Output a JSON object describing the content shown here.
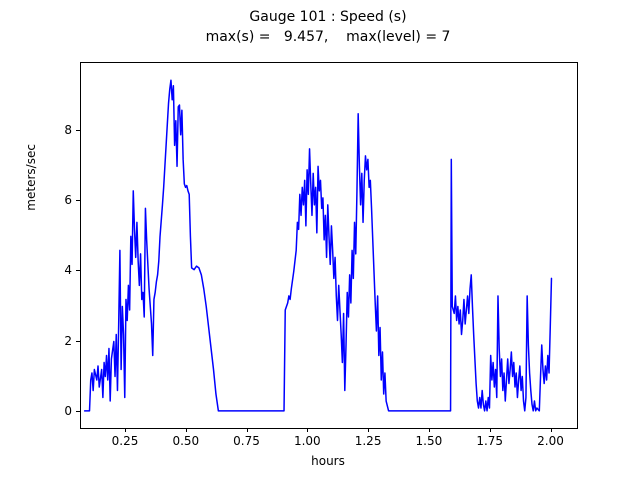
{
  "chart_data": {
    "type": "line",
    "title": "Gauge 101 : Speed (s)",
    "subtitle": "max(s) =   9.457,    max(level) = 7",
    "xlabel": "hours",
    "ylabel": "meters/sec",
    "xlim": [
      0.065,
      2.105
    ],
    "ylim": [
      -0.47,
      9.95
    ],
    "x_ticks": [
      0.25,
      0.5,
      0.75,
      1.0,
      1.25,
      1.5,
      1.75,
      2.0
    ],
    "x_tick_labels": [
      "0.25",
      "0.50",
      "0.75",
      "1.00",
      "1.25",
      "1.50",
      "1.75",
      "2.00"
    ],
    "y_ticks": [
      0,
      2,
      4,
      6,
      8
    ],
    "y_tick_labels": [
      "0",
      "2",
      "4",
      "6",
      "8"
    ],
    "line_color": "#0000ff",
    "grid": false,
    "legend": "none",
    "max_s": 9.457,
    "max_level": 7,
    "series": [
      {
        "name": "speed",
        "points": [
          [
            0.08,
            0.02
          ],
          [
            0.1,
            0.02
          ],
          [
            0.105,
            0.9
          ],
          [
            0.11,
            1.1
          ],
          [
            0.115,
            0.6
          ],
          [
            0.12,
            1.2
          ],
          [
            0.13,
            0.9
          ],
          [
            0.135,
            1.3
          ],
          [
            0.14,
            0.7
          ],
          [
            0.15,
            1.2
          ],
          [
            0.155,
            0.4
          ],
          [
            0.16,
            1.4
          ],
          [
            0.165,
            1.0
          ],
          [
            0.17,
            1.6
          ],
          [
            0.175,
            0.9
          ],
          [
            0.18,
            1.8
          ],
          [
            0.185,
            0.3
          ],
          [
            0.19,
            1.5
          ],
          [
            0.2,
            2.0
          ],
          [
            0.205,
            1.0
          ],
          [
            0.21,
            2.2
          ],
          [
            0.215,
            0.6
          ],
          [
            0.22,
            2.5
          ],
          [
            0.225,
            4.6
          ],
          [
            0.23,
            1.2
          ],
          [
            0.235,
            3.0
          ],
          [
            0.24,
            2.2
          ],
          [
            0.245,
            0.4
          ],
          [
            0.25,
            3.2
          ],
          [
            0.255,
            2.6
          ],
          [
            0.26,
            3.6
          ],
          [
            0.265,
            2.9
          ],
          [
            0.27,
            5.0
          ],
          [
            0.275,
            4.2
          ],
          [
            0.28,
            6.3
          ],
          [
            0.285,
            5.2
          ],
          [
            0.29,
            4.4
          ],
          [
            0.295,
            5.4
          ],
          [
            0.3,
            4.3
          ],
          [
            0.305,
            3.6
          ],
          [
            0.31,
            4.5
          ],
          [
            0.315,
            3.2
          ],
          [
            0.32,
            3.4
          ],
          [
            0.325,
            2.7
          ],
          [
            0.33,
            5.8
          ],
          [
            0.335,
            4.9
          ],
          [
            0.34,
            4.2
          ],
          [
            0.345,
            3.5
          ],
          [
            0.35,
            3.0
          ],
          [
            0.355,
            2.5
          ],
          [
            0.36,
            1.6
          ],
          [
            0.365,
            3.2
          ],
          [
            0.37,
            3.4
          ],
          [
            0.375,
            3.7
          ],
          [
            0.38,
            3.9
          ],
          [
            0.385,
            4.3
          ],
          [
            0.39,
            5.0
          ],
          [
            0.4,
            5.9
          ],
          [
            0.405,
            6.4
          ],
          [
            0.41,
            7.0
          ],
          [
            0.415,
            7.6
          ],
          [
            0.42,
            8.2
          ],
          [
            0.425,
            8.8
          ],
          [
            0.43,
            9.2
          ],
          [
            0.435,
            9.457
          ],
          [
            0.44,
            8.9
          ],
          [
            0.445,
            9.3
          ],
          [
            0.45,
            7.6
          ],
          [
            0.455,
            8.3
          ],
          [
            0.46,
            7.0
          ],
          [
            0.465,
            8.7
          ],
          [
            0.47,
            8.75
          ],
          [
            0.475,
            7.9
          ],
          [
            0.48,
            8.6
          ],
          [
            0.485,
            7.2
          ],
          [
            0.49,
            6.5
          ],
          [
            0.495,
            6.4
          ],
          [
            0.5,
            6.45
          ],
          [
            0.505,
            6.3
          ],
          [
            0.51,
            6.2
          ],
          [
            0.515,
            5.0
          ],
          [
            0.52,
            4.1
          ],
          [
            0.53,
            4.05
          ],
          [
            0.54,
            4.15
          ],
          [
            0.55,
            4.1
          ],
          [
            0.56,
            3.9
          ],
          [
            0.57,
            3.5
          ],
          [
            0.58,
            3.0
          ],
          [
            0.59,
            2.4
          ],
          [
            0.6,
            1.8
          ],
          [
            0.61,
            1.2
          ],
          [
            0.62,
            0.5
          ],
          [
            0.63,
            0.02
          ],
          [
            0.7,
            0.02
          ],
          [
            0.8,
            0.02
          ],
          [
            0.9,
            0.02
          ],
          [
            0.905,
            2.9
          ],
          [
            0.91,
            3.0
          ],
          [
            0.915,
            3.1
          ],
          [
            0.92,
            3.3
          ],
          [
            0.925,
            3.2
          ],
          [
            0.93,
            3.5
          ],
          [
            0.94,
            4.0
          ],
          [
            0.95,
            4.6
          ],
          [
            0.955,
            5.4
          ],
          [
            0.96,
            5.2
          ],
          [
            0.965,
            6.2
          ],
          [
            0.97,
            5.6
          ],
          [
            0.975,
            6.4
          ],
          [
            0.98,
            5.9
          ],
          [
            0.985,
            6.6
          ],
          [
            0.99,
            5.3
          ],
          [
            0.995,
            6.9
          ],
          [
            1.0,
            6.2
          ],
          [
            1.005,
            7.5
          ],
          [
            1.01,
            6.5
          ],
          [
            1.015,
            5.6
          ],
          [
            1.02,
            6.8
          ],
          [
            1.025,
            5.9
          ],
          [
            1.03,
            6.4
          ],
          [
            1.035,
            5.1
          ],
          [
            1.04,
            7.0
          ],
          [
            1.045,
            6.3
          ],
          [
            1.05,
            6.6
          ],
          [
            1.055,
            5.8
          ],
          [
            1.06,
            6.1
          ],
          [
            1.065,
            4.9
          ],
          [
            1.07,
            5.6
          ],
          [
            1.075,
            4.4
          ],
          [
            1.08,
            5.9
          ],
          [
            1.085,
            5.0
          ],
          [
            1.09,
            4.2
          ],
          [
            1.095,
            5.3
          ],
          [
            1.1,
            4.6
          ],
          [
            1.105,
            3.8
          ],
          [
            1.11,
            4.4
          ],
          [
            1.115,
            3.3
          ],
          [
            1.12,
            2.6
          ],
          [
            1.125,
            3.6
          ],
          [
            1.13,
            2.9
          ],
          [
            1.135,
            2.2
          ],
          [
            1.14,
            1.4
          ],
          [
            1.145,
            2.8
          ],
          [
            1.15,
            0.6
          ],
          [
            1.155,
            1.9
          ],
          [
            1.16,
            3.4
          ],
          [
            1.165,
            2.7
          ],
          [
            1.17,
            3.9
          ],
          [
            1.175,
            3.1
          ],
          [
            1.18,
            4.6
          ],
          [
            1.185,
            3.8
          ],
          [
            1.19,
            5.4
          ],
          [
            1.195,
            4.5
          ],
          [
            1.2,
            6.3
          ],
          [
            1.205,
            8.5
          ],
          [
            1.21,
            7.0
          ],
          [
            1.215,
            5.9
          ],
          [
            1.22,
            6.8
          ],
          [
            1.225,
            5.4
          ],
          [
            1.23,
            6.6
          ],
          [
            1.235,
            7.3
          ],
          [
            1.24,
            6.9
          ],
          [
            1.245,
            7.2
          ],
          [
            1.25,
            6.4
          ],
          [
            1.255,
            6.6
          ],
          [
            1.26,
            5.8
          ],
          [
            1.265,
            4.9
          ],
          [
            1.27,
            4.0
          ],
          [
            1.275,
            3.1
          ],
          [
            1.28,
            2.3
          ],
          [
            1.285,
            3.3
          ],
          [
            1.29,
            1.6
          ],
          [
            1.295,
            2.4
          ],
          [
            1.3,
            0.9
          ],
          [
            1.305,
            1.7
          ],
          [
            1.31,
            0.5
          ],
          [
            1.315,
            1.1
          ],
          [
            1.32,
            0.3
          ],
          [
            1.33,
            0.02
          ],
          [
            1.4,
            0.02
          ],
          [
            1.5,
            0.02
          ],
          [
            1.585,
            0.02
          ],
          [
            1.588,
            7.2
          ],
          [
            1.592,
            3.0
          ],
          [
            1.6,
            2.8
          ],
          [
            1.605,
            3.3
          ],
          [
            1.61,
            2.6
          ],
          [
            1.615,
            3.0
          ],
          [
            1.62,
            2.5
          ],
          [
            1.625,
            2.9
          ],
          [
            1.63,
            2.2
          ],
          [
            1.635,
            2.6
          ],
          [
            1.64,
            3.2
          ],
          [
            1.645,
            2.5
          ],
          [
            1.65,
            2.9
          ],
          [
            1.655,
            3.3
          ],
          [
            1.66,
            2.8
          ],
          [
            1.665,
            3.5
          ],
          [
            1.67,
            3.9
          ],
          [
            1.675,
            3.0
          ],
          [
            1.68,
            2.2
          ],
          [
            1.685,
            1.5
          ],
          [
            1.69,
            0.8
          ],
          [
            1.695,
            0.3
          ],
          [
            1.7,
            0.1
          ],
          [
            1.705,
            0.4
          ],
          [
            1.71,
            0.1
          ],
          [
            1.715,
            0.6
          ],
          [
            1.72,
            0.2
          ],
          [
            1.725,
            0.02
          ],
          [
            1.73,
            0.3
          ],
          [
            1.735,
            0.02
          ],
          [
            1.74,
            0.4
          ],
          [
            1.745,
            0.1
          ],
          [
            1.75,
            1.6
          ],
          [
            1.755,
            0.9
          ],
          [
            1.76,
            1.4
          ],
          [
            1.765,
            0.7
          ],
          [
            1.77,
            1.2
          ],
          [
            1.775,
            0.4
          ],
          [
            1.78,
            3.3
          ],
          [
            1.785,
            1.8
          ],
          [
            1.79,
            1.0
          ],
          [
            1.795,
            1.5
          ],
          [
            1.8,
            0.6
          ],
          [
            1.805,
            1.1
          ],
          [
            1.81,
            0.3
          ],
          [
            1.815,
            0.9
          ],
          [
            1.82,
            1.5
          ],
          [
            1.825,
            0.8
          ],
          [
            1.83,
            1.2
          ],
          [
            1.835,
            1.7
          ],
          [
            1.84,
            1.0
          ],
          [
            1.845,
            1.4
          ],
          [
            1.85,
            0.7
          ],
          [
            1.855,
            1.1
          ],
          [
            1.86,
            0.4
          ],
          [
            1.865,
            0.9
          ],
          [
            1.87,
            1.3
          ],
          [
            1.875,
            0.6
          ],
          [
            1.88,
            1.0
          ],
          [
            1.885,
            0.3
          ],
          [
            1.89,
            0.02
          ],
          [
            1.895,
            0.4
          ],
          [
            1.9,
            3.3
          ],
          [
            1.905,
            1.9
          ],
          [
            1.91,
            1.1
          ],
          [
            1.915,
            0.6
          ],
          [
            1.92,
            0.2
          ],
          [
            1.925,
            0.02
          ],
          [
            1.93,
            0.3
          ],
          [
            1.935,
            0.02
          ],
          [
            1.94,
            0.1
          ],
          [
            1.95,
            0.02
          ],
          [
            1.955,
            1.0
          ],
          [
            1.96,
            1.9
          ],
          [
            1.965,
            1.2
          ],
          [
            1.97,
            0.8
          ],
          [
            1.975,
            1.3
          ],
          [
            1.98,
            0.9
          ],
          [
            1.985,
            1.6
          ],
          [
            1.99,
            1.1
          ],
          [
            1.995,
            2.4
          ],
          [
            2.0,
            3.8
          ]
        ]
      }
    ]
  }
}
